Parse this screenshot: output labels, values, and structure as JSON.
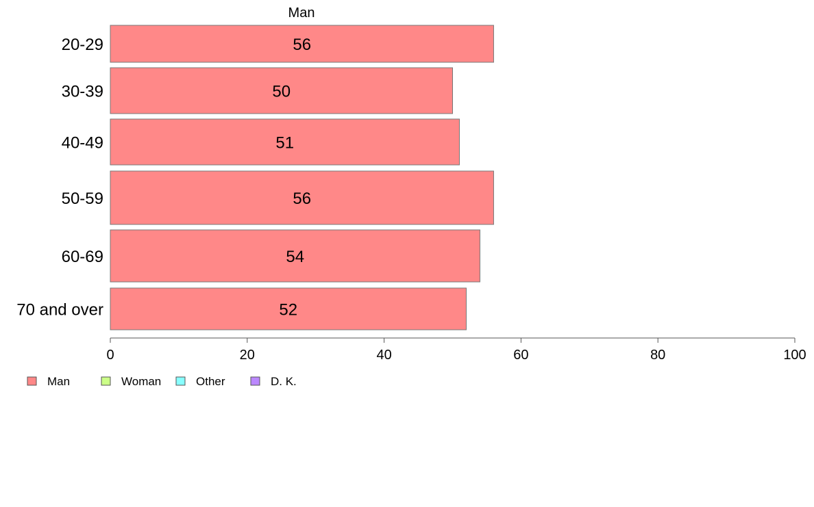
{
  "chart_data": {
    "type": "bar",
    "orientation": "horizontal",
    "title": "Man",
    "categories": [
      "20-29",
      "30-39",
      "40-49",
      "50-59",
      "60-69",
      "70 and over"
    ],
    "series": [
      {
        "name": "Man",
        "values": [
          56,
          50,
          51,
          56,
          54,
          52
        ],
        "color": "#ff8888"
      }
    ],
    "data_labels": [
      "56",
      "50",
      "51",
      "56",
      "54",
      "52"
    ],
    "xlim": [
      0,
      100
    ],
    "xticks": [
      0,
      20,
      40,
      60,
      80,
      100
    ],
    "xtick_labels": [
      "0",
      "20",
      "40",
      "60",
      "80",
      "100"
    ],
    "grid": false,
    "legend_position": "bottom-left",
    "legend": [
      {
        "label": "Man",
        "color": "#ff8888"
      },
      {
        "label": "Woman",
        "color": "#ccff88"
      },
      {
        "label": "Other",
        "color": "#88ffff"
      },
      {
        "label": "D. K.",
        "color": "#bb88ff"
      }
    ]
  }
}
